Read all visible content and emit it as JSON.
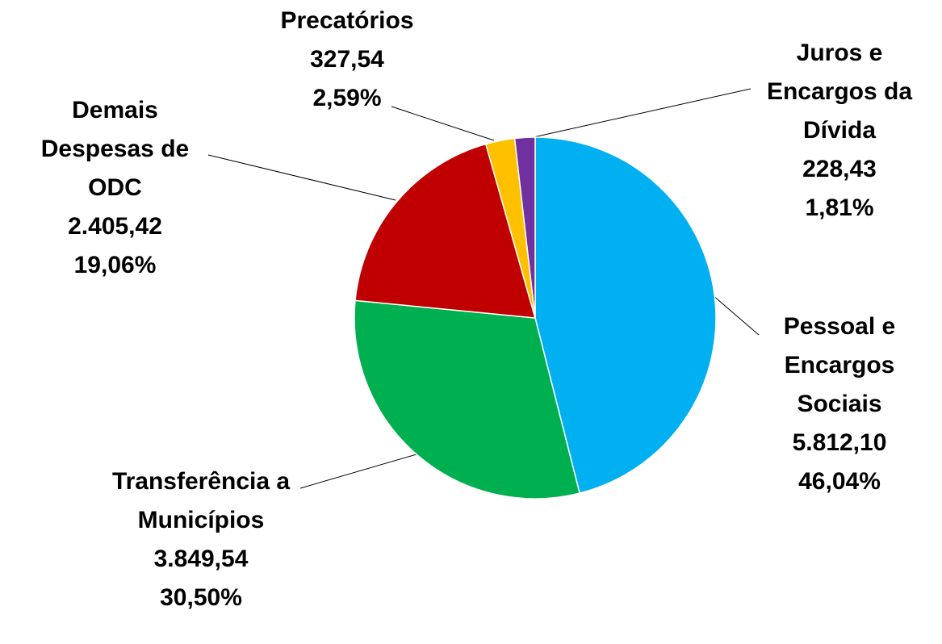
{
  "chart_data": {
    "type": "pie",
    "categories": [
      "Pessoal e Encargos Sociais",
      "Transferência a Municípios",
      "Demais Despesas de ODC",
      "Precatórios",
      "Juros e Encargos da Dívida"
    ],
    "values": [
      5812.1,
      3849.54,
      2405.42,
      327.54,
      228.43
    ],
    "value_labels": [
      "5.812,10",
      "3.849,54",
      "2.405,42",
      "327,54",
      "228,43"
    ],
    "percents": [
      46.04,
      30.5,
      19.06,
      2.59,
      1.81
    ],
    "percent_labels": [
      "46,04%",
      "30,50%",
      "19,06%",
      "2,59%",
      "1,81%"
    ],
    "colors": [
      "#00b0f0",
      "#00b050",
      "#c00000",
      "#ffc000",
      "#7030a0"
    ]
  }
}
